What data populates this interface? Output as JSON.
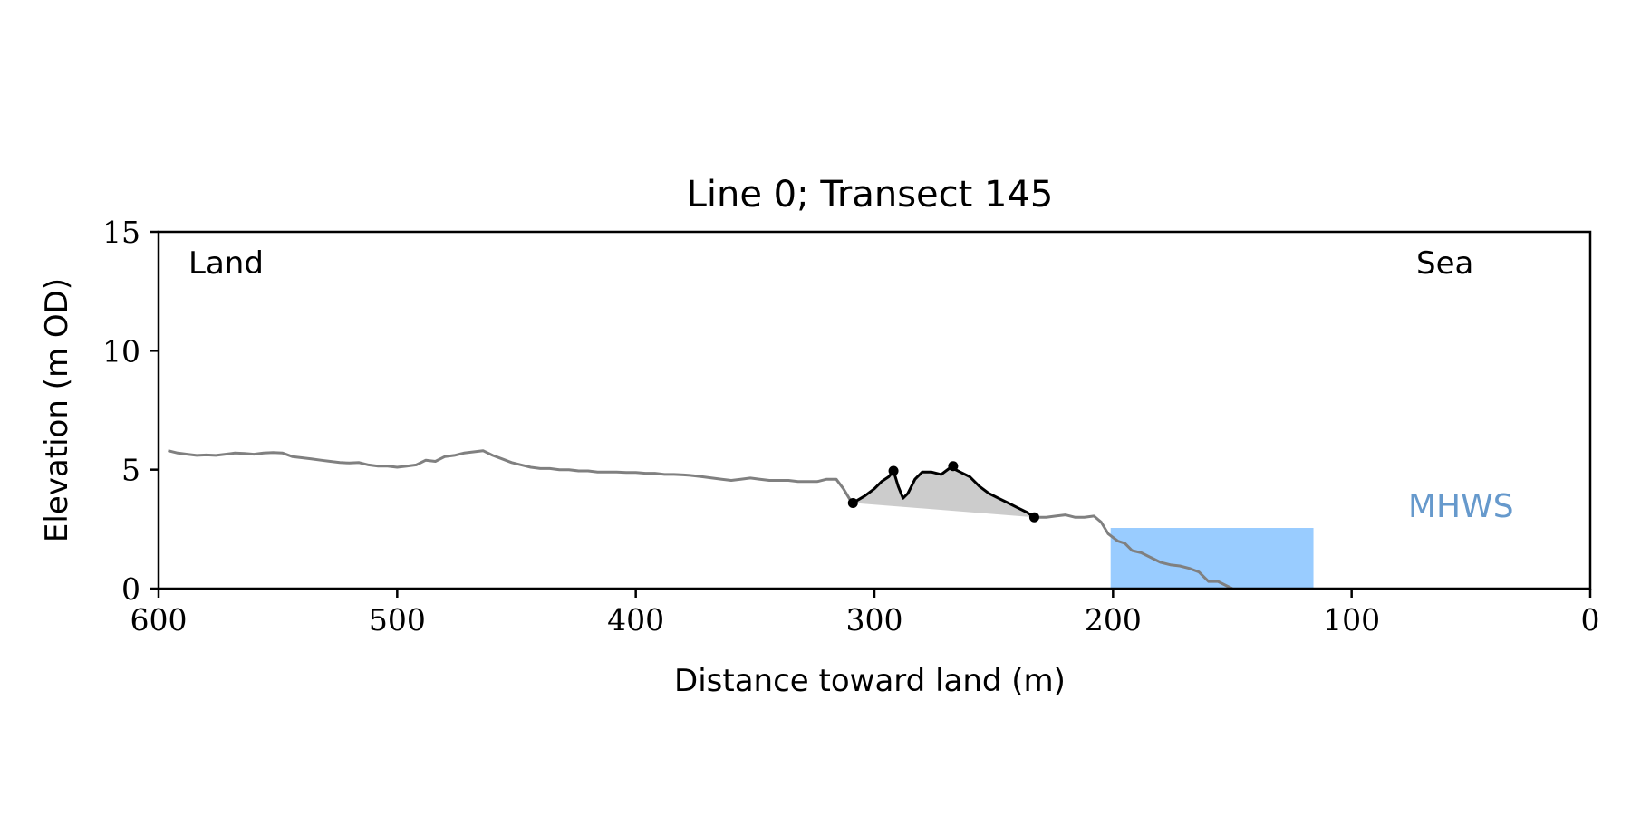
{
  "chart_data": {
    "type": "line",
    "title": "Line 0; Transect 145",
    "xlabel": "Distance toward land (m)",
    "ylabel": "Elevation (m OD)",
    "xlim": [
      600,
      0
    ],
    "ylim": [
      0,
      15
    ],
    "x_ticks": [
      600,
      500,
      400,
      300,
      200,
      100,
      0
    ],
    "y_ticks": [
      0,
      5,
      10,
      15
    ],
    "x_tick_labels": [
      "600",
      "500",
      "400",
      "300",
      "200",
      "100",
      "0"
    ],
    "y_tick_labels": [
      "0",
      "5",
      "10",
      "15"
    ],
    "grid": false,
    "annotations": {
      "land": "Land",
      "sea": "Sea",
      "mhws": "MHWS"
    },
    "colors": {
      "profile": "#808080",
      "dune": "#000000",
      "dune_fill": "#cccccc",
      "mhws_fill": "#99ccff",
      "mhws_text": "#6699cc"
    },
    "profile": {
      "x": [
        596,
        592,
        588,
        584,
        580,
        576,
        572,
        568,
        564,
        560,
        556,
        552,
        548,
        544,
        540,
        536,
        532,
        528,
        524,
        520,
        516,
        512,
        508,
        504,
        500,
        496,
        492,
        488,
        484,
        480,
        476,
        472,
        468,
        464,
        460,
        456,
        452,
        448,
        444,
        440,
        436,
        432,
        428,
        424,
        420,
        416,
        412,
        408,
        404,
        400,
        396,
        392,
        388,
        384,
        380,
        376,
        372,
        368,
        364,
        360,
        356,
        352,
        348,
        344,
        340,
        336,
        332,
        328,
        324,
        320,
        316,
        313,
        310
      ],
      "y": [
        5.8,
        5.7,
        5.65,
        5.6,
        5.62,
        5.6,
        5.65,
        5.7,
        5.68,
        5.65,
        5.7,
        5.72,
        5.7,
        5.55,
        5.5,
        5.45,
        5.4,
        5.35,
        5.3,
        5.28,
        5.3,
        5.2,
        5.15,
        5.15,
        5.1,
        5.15,
        5.2,
        5.4,
        5.35,
        5.55,
        5.6,
        5.7,
        5.75,
        5.8,
        5.6,
        5.45,
        5.3,
        5.2,
        5.1,
        5.05,
        5.05,
        5.0,
        5.0,
        4.95,
        4.95,
        4.9,
        4.9,
        4.9,
        4.88,
        4.88,
        4.85,
        4.85,
        4.8,
        4.8,
        4.78,
        4.75,
        4.7,
        4.65,
        4.6,
        4.55,
        4.6,
        4.65,
        4.6,
        4.55,
        4.55,
        4.55,
        4.5,
        4.5,
        4.5,
        4.6,
        4.6,
        4.2,
        3.7
      ]
    },
    "dune": {
      "x": [
        309,
        304,
        300,
        297,
        294,
        292,
        290,
        288,
        286,
        283,
        280,
        276,
        272,
        268,
        264,
        260,
        256,
        252,
        248,
        244,
        240,
        236,
        233
      ],
      "y": [
        3.6,
        3.9,
        4.2,
        4.5,
        4.7,
        4.95,
        4.3,
        3.8,
        4.0,
        4.6,
        4.9,
        4.9,
        4.8,
        5.1,
        4.9,
        4.7,
        4.3,
        4.0,
        3.8,
        3.6,
        3.4,
        3.2,
        3.0
      ]
    },
    "dune_markers": {
      "x": [
        309,
        292,
        267,
        233
      ],
      "y": [
        3.6,
        4.95,
        5.15,
        3.0
      ]
    },
    "dune_base": {
      "x": [
        309,
        233
      ],
      "y": [
        3.6,
        3.0
      ]
    },
    "seaward_profile": {
      "x": [
        233,
        228,
        224,
        220,
        216,
        212,
        208,
        205,
        202,
        198,
        195,
        192,
        188,
        184,
        180,
        176,
        172,
        168,
        164,
        160,
        156,
        152,
        150
      ],
      "y": [
        3.0,
        3.0,
        3.05,
        3.1,
        3.0,
        3.0,
        3.05,
        2.8,
        2.3,
        2.0,
        1.9,
        1.6,
        1.5,
        1.3,
        1.1,
        1.0,
        0.95,
        0.85,
        0.7,
        0.3,
        0.3,
        0.1,
        0.0
      ]
    },
    "mhws": {
      "level": 2.55,
      "x_extent": [
        201,
        116
      ]
    }
  }
}
